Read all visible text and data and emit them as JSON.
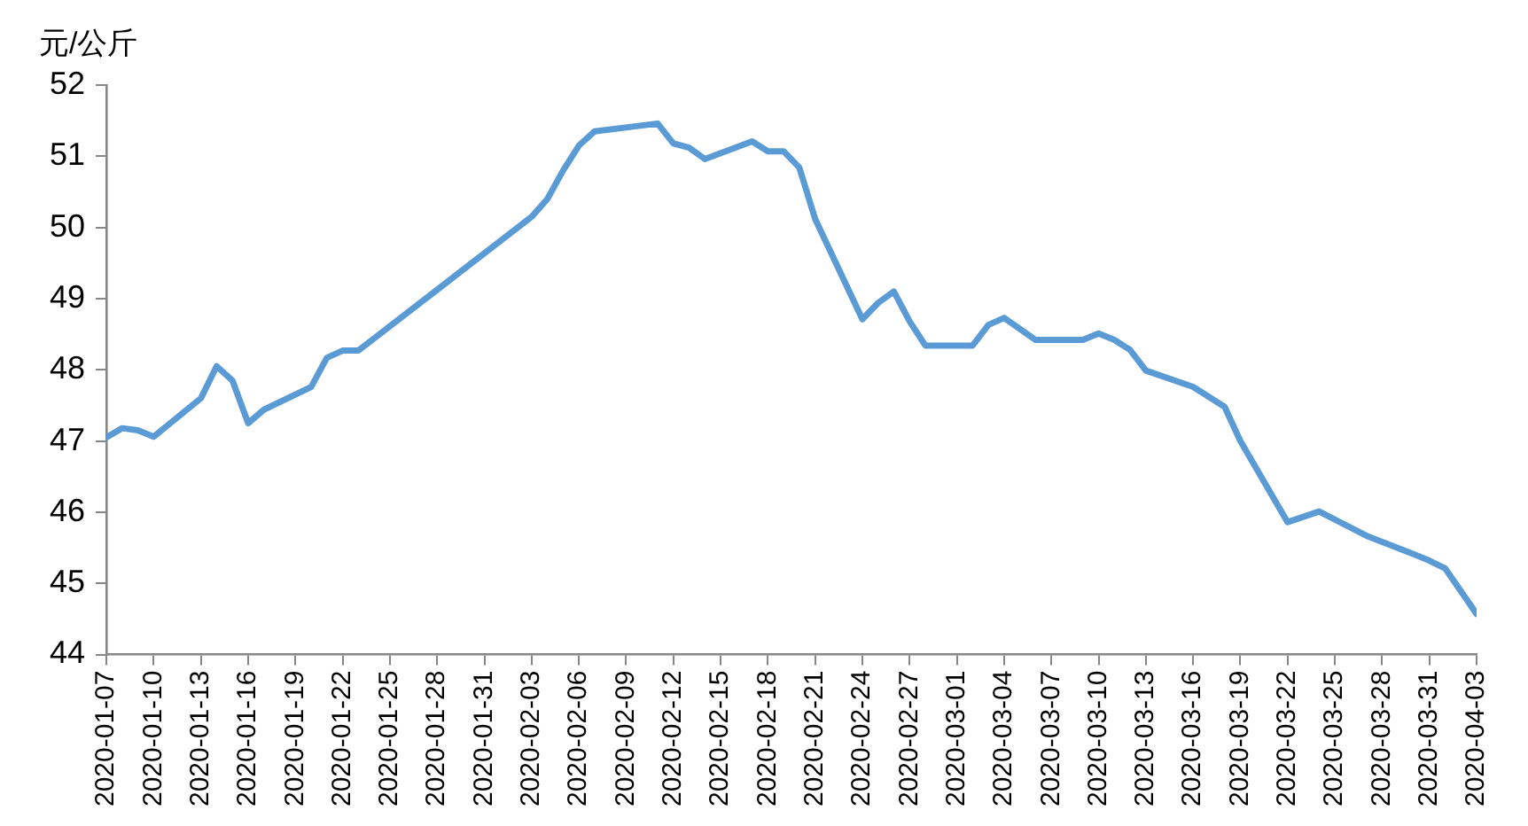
{
  "chart_data": {
    "type": "line",
    "ylabel": "元/公斤",
    "x": [
      "2020-01-07",
      "2020-01-08",
      "2020-01-09",
      "2020-01-10",
      "2020-01-13",
      "2020-01-14",
      "2020-01-15",
      "2020-01-16",
      "2020-01-17",
      "2020-01-20",
      "2020-01-21",
      "2020-01-22",
      "2020-01-23",
      "2020-02-03",
      "2020-02-04",
      "2020-02-05",
      "2020-02-06",
      "2020-02-07",
      "2020-02-11",
      "2020-02-12",
      "2020-02-13",
      "2020-02-14",
      "2020-02-17",
      "2020-02-18",
      "2020-02-19",
      "2020-02-20",
      "2020-02-21",
      "2020-02-24",
      "2020-02-25",
      "2020-02-26",
      "2020-02-27",
      "2020-02-28",
      "2020-03-02",
      "2020-03-03",
      "2020-03-04",
      "2020-03-06",
      "2020-03-09",
      "2020-03-10",
      "2020-03-11",
      "2020-03-12",
      "2020-03-13",
      "2020-03-16",
      "2020-03-18",
      "2020-03-19",
      "2020-03-22",
      "2020-03-24",
      "2020-03-27",
      "2020-03-30",
      "2020-03-31",
      "2020-04-01",
      "2020-04-03"
    ],
    "series": [
      {
        "color": "#5b9bd5",
        "values": [
          47.05,
          47.18,
          47.15,
          47.06,
          47.6,
          48.05,
          47.85,
          47.25,
          47.44,
          47.76,
          48.17,
          48.27,
          48.27,
          50.15,
          50.4,
          50.8,
          51.15,
          51.35,
          51.46,
          51.18,
          51.12,
          50.96,
          51.21,
          51.07,
          51.07,
          50.84,
          50.12,
          48.71,
          48.94,
          49.1,
          48.68,
          48.34,
          48.34,
          48.63,
          48.73,
          48.42,
          48.42,
          48.51,
          48.42,
          48.28,
          47.99,
          47.76,
          47.48,
          47.0,
          45.86,
          46.01,
          45.67,
          45.41,
          45.32,
          45.21,
          44.57
        ]
      }
    ],
    "xlim": [
      "2020-01-07",
      "2020-04-03"
    ],
    "xticks": [
      "2020-01-07",
      "2020-01-10",
      "2020-01-13",
      "2020-01-16",
      "2020-01-19",
      "2020-01-22",
      "2020-01-25",
      "2020-01-28",
      "2020-01-31",
      "2020-02-03",
      "2020-02-06",
      "2020-02-09",
      "2020-02-12",
      "2020-02-15",
      "2020-02-18",
      "2020-02-21",
      "2020-02-24",
      "2020-02-27",
      "2020-03-01",
      "2020-03-04",
      "2020-03-07",
      "2020-03-10",
      "2020-03-13",
      "2020-03-16",
      "2020-03-19",
      "2020-03-22",
      "2020-03-25",
      "2020-03-28",
      "2020-03-31",
      "2020-04-03"
    ],
    "ylim": [
      44,
      52
    ],
    "yticks": [
      44,
      45,
      46,
      47,
      48,
      49,
      50,
      51,
      52
    ],
    "grid": false,
    "legend": false,
    "marker": "none",
    "line_style": "solid"
  }
}
